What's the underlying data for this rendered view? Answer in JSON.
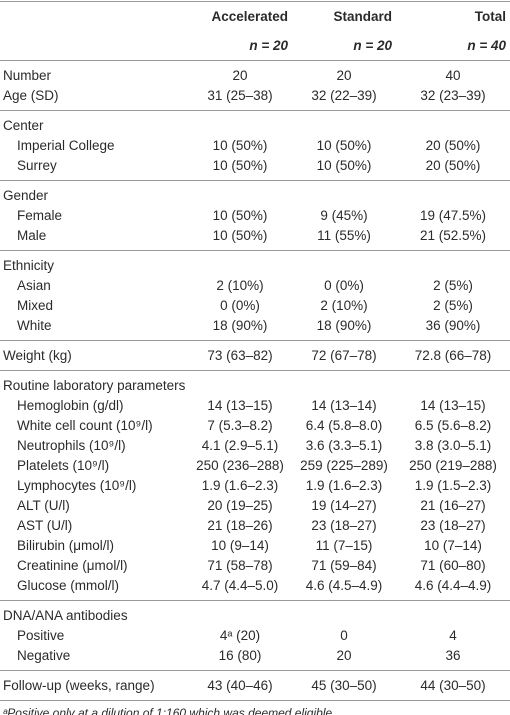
{
  "header": {
    "columns": [
      {
        "name": "Accelerated",
        "n": "n = 20"
      },
      {
        "name": "Standard",
        "n": "n = 20"
      },
      {
        "name": "Total",
        "n": "n = 40"
      }
    ]
  },
  "groups": [
    {
      "rows": [
        {
          "label": "Number",
          "values": [
            "20",
            "20",
            "40"
          ]
        },
        {
          "label": "Age (SD)",
          "values": [
            "31 (25–38)",
            "32 (22–39)",
            "32 (23–39)"
          ]
        }
      ]
    },
    {
      "heading": "Center",
      "rows": [
        {
          "label": "Imperial College",
          "values": [
            "10 (50%)",
            "10 (50%)",
            "20 (50%)"
          ]
        },
        {
          "label": "Surrey",
          "values": [
            "10 (50%)",
            "10 (50%)",
            "20 (50%)"
          ]
        }
      ]
    },
    {
      "heading": "Gender",
      "rows": [
        {
          "label": "Female",
          "values": [
            "10 (50%)",
            "9 (45%)",
            "19 (47.5%)"
          ]
        },
        {
          "label": "Male",
          "values": [
            "10 (50%)",
            "11 (55%)",
            "21 (52.5%)"
          ]
        }
      ]
    },
    {
      "heading": "Ethnicity",
      "rows": [
        {
          "label": "Asian",
          "values": [
            "2 (10%)",
            "0 (0%)",
            "2 (5%)"
          ]
        },
        {
          "label": "Mixed",
          "values": [
            "0 (0%)",
            "2 (10%)",
            "2 (5%)"
          ]
        },
        {
          "label": "White",
          "values": [
            "18 (90%)",
            "18 (90%)",
            "36 (90%)"
          ]
        }
      ]
    },
    {
      "rows": [
        {
          "label": "Weight (kg)",
          "values": [
            "73 (63–82)",
            "72 (67–78)",
            "72.8 (66–78)"
          ]
        }
      ]
    },
    {
      "heading": "Routine laboratory parameters",
      "rows": [
        {
          "label": "Hemoglobin (g/dl)",
          "values": [
            "14 (13–15)",
            "14 (13–14)",
            "14 (13–15)"
          ]
        },
        {
          "label": "White cell count (10⁹/l)",
          "values": [
            "7 (5.3–8.2)",
            "6.4 (5.8–8.0)",
            "6.5 (5.6–8.2)"
          ]
        },
        {
          "label": "Neutrophils (10⁹/l)",
          "values": [
            "4.1 (2.9–5.1)",
            "3.6 (3.3–5.1)",
            "3.8 (3.0–5.1)"
          ]
        },
        {
          "label": "Platelets (10⁹/l)",
          "values": [
            "250 (236–288)",
            "259 (225–289)",
            "250 (219–288)"
          ]
        },
        {
          "label": "Lymphocytes (10⁹/l)",
          "values": [
            "1.9 (1.6–2.3)",
            "1.9 (1.6–2.3)",
            "1.9 (1.5–2.3)"
          ]
        },
        {
          "label": "ALT (U/l)",
          "values": [
            "20 (19–25)",
            "19 (14–27)",
            "21 (16–27)"
          ]
        },
        {
          "label": "AST (U/l)",
          "values": [
            "21 (18–26)",
            "23 (18–27)",
            "23 (18–27)"
          ]
        },
        {
          "label": "Bilirubin (μmol/l)",
          "values": [
            "10 (9–14)",
            "11 (7–15)",
            "10 (7–14)"
          ]
        },
        {
          "label": "Creatinine (μmol/l)",
          "values": [
            "71 (58–78)",
            "71 (59–84)",
            "71 (60–80)"
          ]
        },
        {
          "label": "Glucose (mmol/l)",
          "values": [
            "4.7 (4.4–5.0)",
            "4.6 (4.5–4.9)",
            "4.6 (4.4–4.9)"
          ]
        }
      ]
    },
    {
      "heading": "DNA/ANA antibodies",
      "rows": [
        {
          "label": "Positive",
          "values": [
            "4ᵃ (20)",
            "0",
            "4"
          ]
        },
        {
          "label": "Negative",
          "values": [
            "16 (80)",
            "20",
            "36"
          ]
        }
      ]
    },
    {
      "rows": [
        {
          "label": "Follow-up (weeks, range)",
          "values": [
            "43 (40–46)",
            "45 (30–50)",
            "44 (30–50)"
          ]
        }
      ]
    }
  ],
  "footnote": "ᵃPositive only at a dilution of 1:160 which was deemed eligible."
}
